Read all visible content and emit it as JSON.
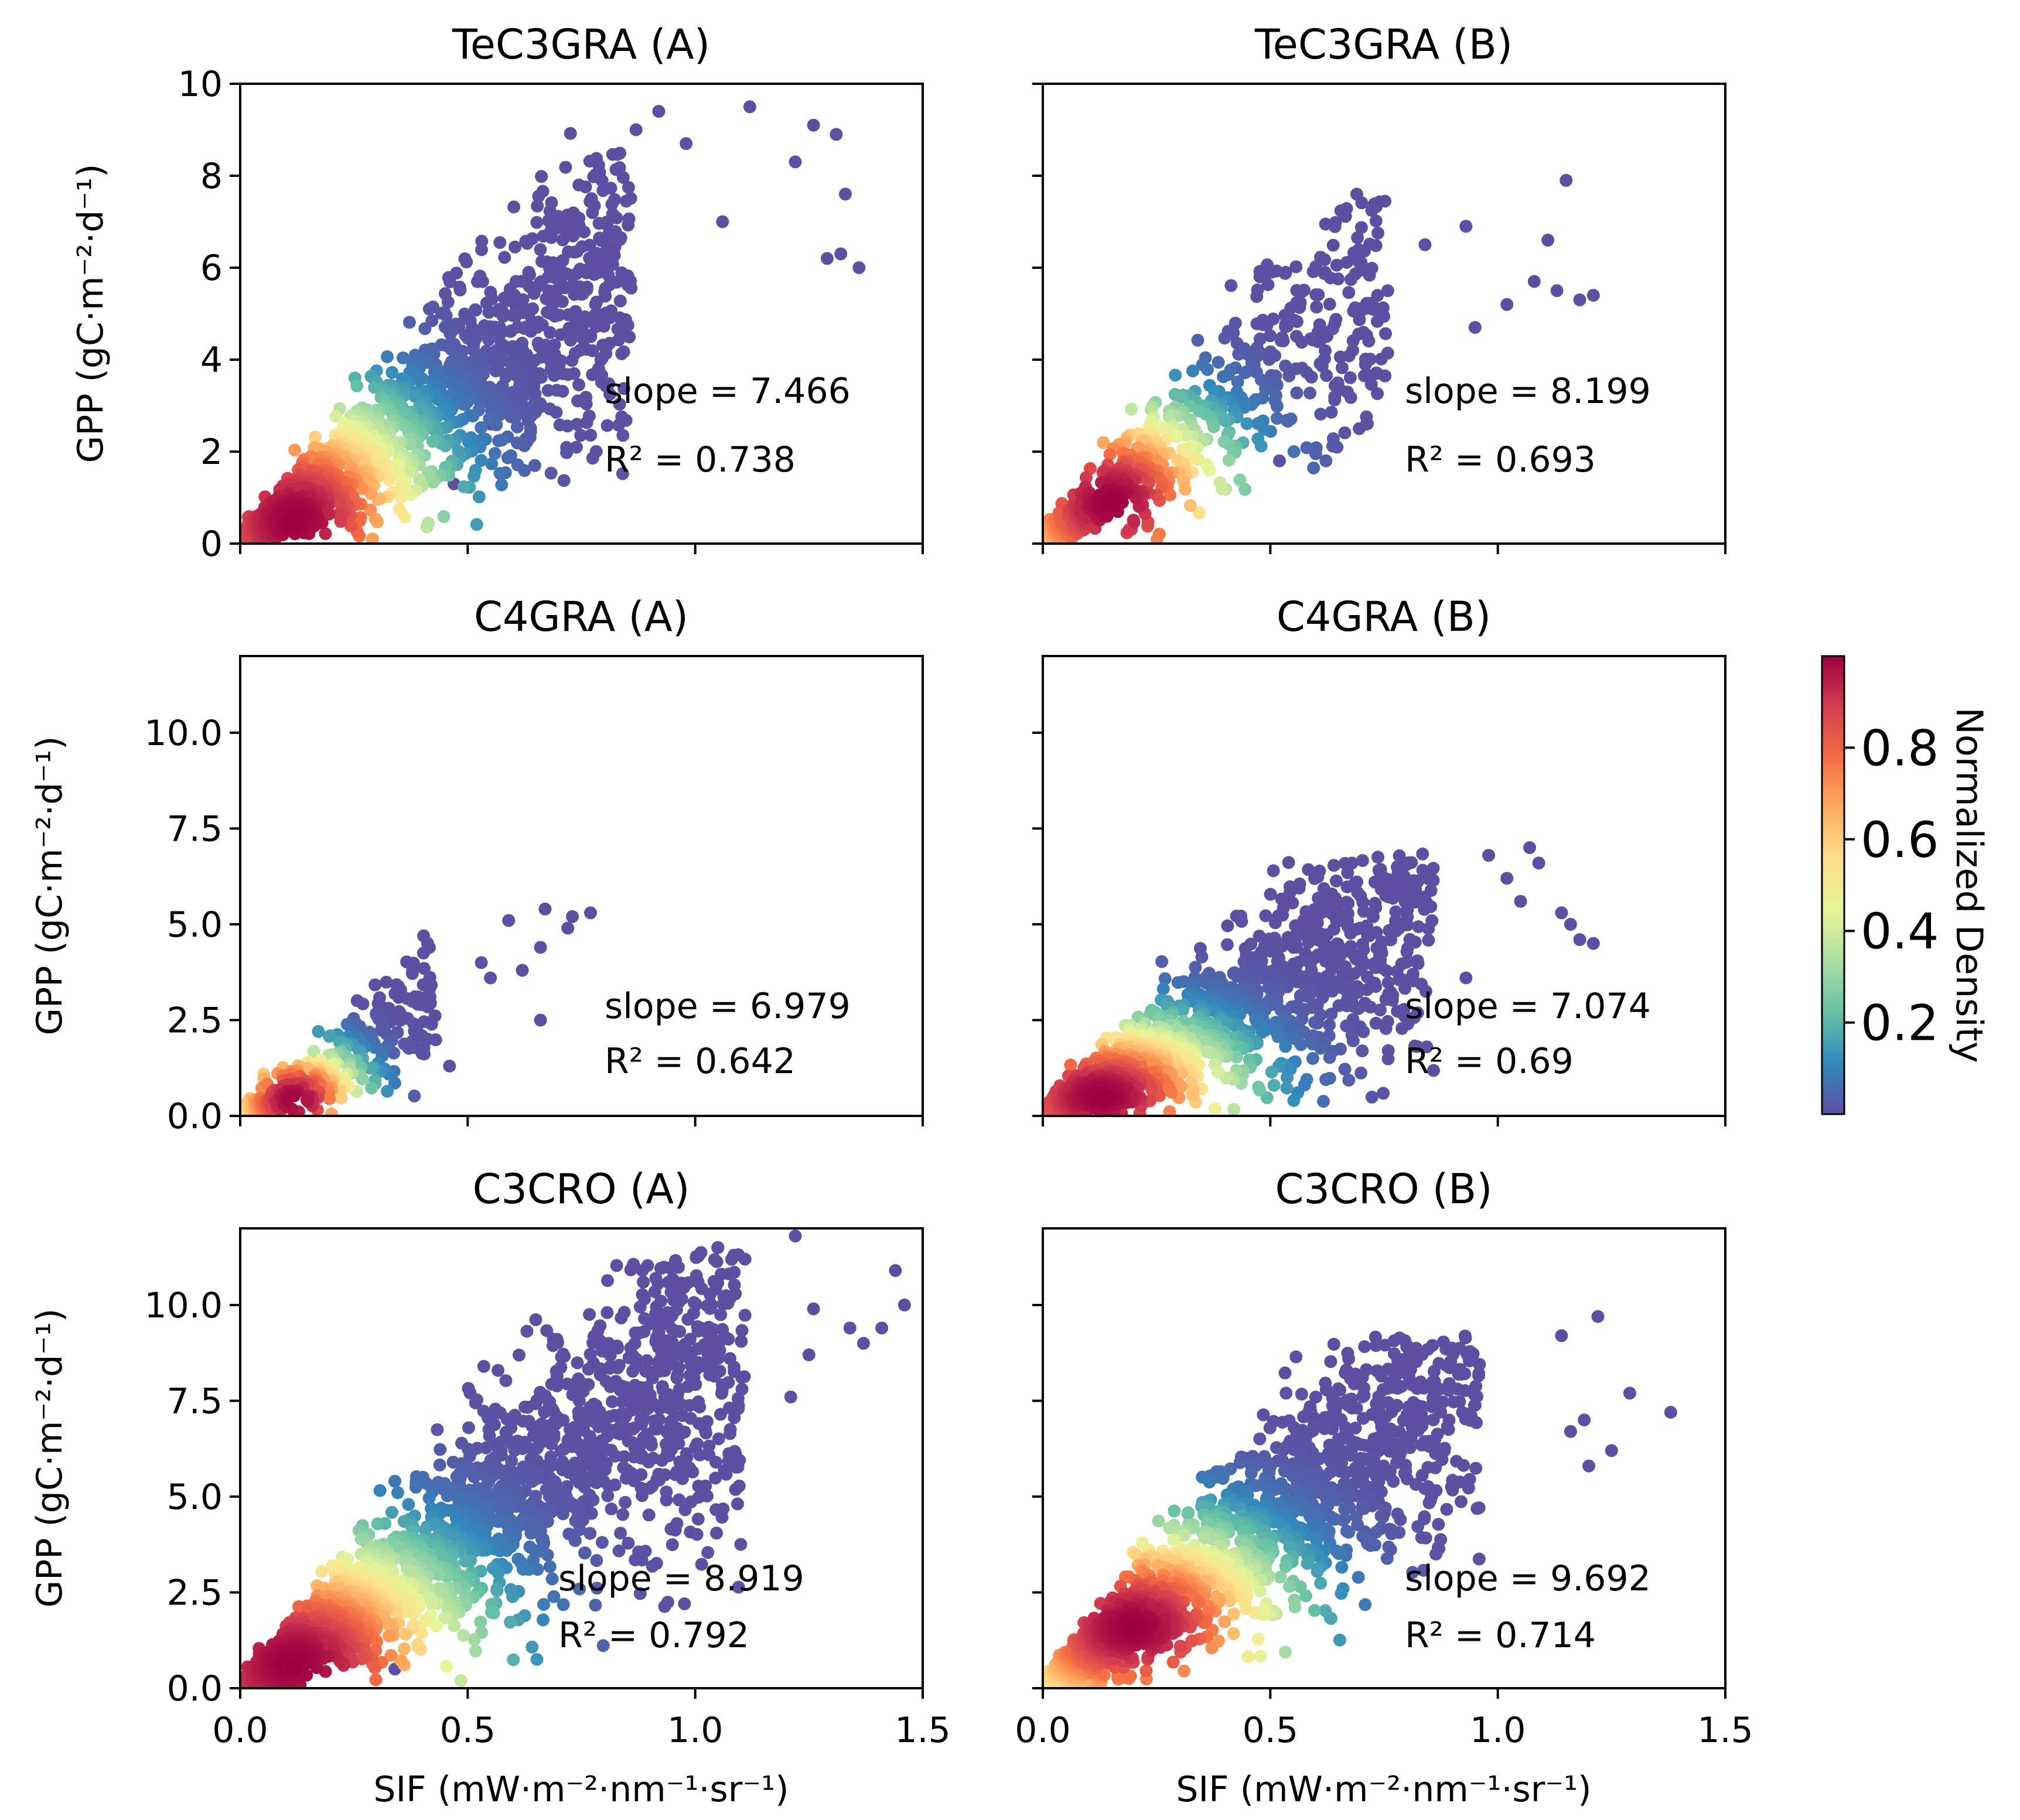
{
  "colormap": {
    "name": "Spectral_r",
    "stops": [
      "#5e4fa2",
      "#3288bd",
      "#66c2a5",
      "#abdda4",
      "#e6f598",
      "#fee08b",
      "#fdae61",
      "#f46d43",
      "#d53e4f",
      "#9e0142"
    ]
  },
  "colorbar": {
    "label": "Normalized Density",
    "ticks": [
      {
        "value": 0.2,
        "label": "0.2"
      },
      {
        "value": 0.4,
        "label": "0.4"
      },
      {
        "value": 0.6,
        "label": "0.6"
      },
      {
        "value": 0.8,
        "label": "0.8"
      }
    ]
  },
  "chart_data": [
    {
      "type": "scatter",
      "title": "TeC3GRA (A)",
      "xlim": [
        0,
        1.5
      ],
      "ylim": [
        0,
        10
      ],
      "xticks": [
        0,
        0.5,
        1.0,
        1.5
      ],
      "xtick_labels": [],
      "yticks": [
        0,
        2,
        4,
        6,
        8,
        10
      ],
      "ytick_labels": [
        "0",
        "2",
        "4",
        "6",
        "8",
        "10"
      ],
      "xlabel": "",
      "ylabel": "GPP (gC·m⁻²·d⁻¹)",
      "slope_label": "slope = 7.466",
      "r2_label": "R² = 0.738",
      "slope": 7.466,
      "r2": 0.738,
      "cloud": {
        "n": 1500,
        "xmax": 0.85,
        "spread": 2.3,
        "cap": 9.2,
        "hot": [
          0.12,
          0.5
        ]
      },
      "outliers": [
        [
          0.92,
          9.4
        ],
        [
          1.12,
          9.5
        ],
        [
          1.26,
          9.1
        ],
        [
          1.31,
          8.9
        ],
        [
          1.22,
          8.3
        ],
        [
          1.33,
          7.6
        ],
        [
          1.32,
          6.3
        ],
        [
          1.36,
          6.0
        ],
        [
          1.29,
          6.2
        ],
        [
          0.55,
          2.6
        ],
        [
          0.47,
          1.3
        ],
        [
          1.06,
          7.0
        ],
        [
          0.98,
          8.7
        ],
        [
          0.87,
          9.0
        ]
      ]
    },
    {
      "type": "scatter",
      "title": "TeC3GRA (B)",
      "xlim": [
        0,
        1.5
      ],
      "ylim": [
        0,
        10
      ],
      "xticks": [
        0,
        0.5,
        1.0,
        1.5
      ],
      "xtick_labels": [],
      "yticks": [
        0,
        2,
        4,
        6,
        8,
        10
      ],
      "ytick_labels": [],
      "xlabel": "",
      "ylabel": "",
      "slope_label": "slope = 8.199",
      "r2_label": "R² = 0.693",
      "slope": 8.199,
      "r2": 0.693,
      "cloud": {
        "n": 650,
        "xmax": 0.75,
        "spread": 2.4,
        "cap": 7.5,
        "hot": [
          0.15,
          0.9
        ]
      },
      "outliers": [
        [
          1.15,
          7.9
        ],
        [
          1.11,
          6.6
        ],
        [
          1.13,
          5.5
        ],
        [
          1.18,
          5.3
        ],
        [
          1.21,
          5.4
        ],
        [
          1.08,
          5.7
        ],
        [
          0.93,
          6.9
        ],
        [
          0.69,
          7.6
        ],
        [
          0.84,
          6.5
        ],
        [
          0.95,
          4.7
        ],
        [
          0.52,
          1.8
        ],
        [
          1.02,
          5.2
        ]
      ]
    },
    {
      "type": "scatter",
      "title": "C4GRA (A)",
      "xlim": [
        0,
        1.5
      ],
      "ylim": [
        0,
        12
      ],
      "xticks": [
        0,
        0.5,
        1.0,
        1.5
      ],
      "xtick_labels": [],
      "yticks": [
        0,
        2.5,
        5,
        7.5,
        10
      ],
      "ytick_labels": [
        "0.0",
        "2.5",
        "5.0",
        "7.5",
        "10.0"
      ],
      "xlabel": "",
      "ylabel": "GPP (gC·m⁻²·d⁻¹)",
      "slope_label": "slope = 6.979",
      "r2_label": "R² = 0.642",
      "slope": 6.979,
      "r2": 0.642,
      "cloud": {
        "n": 360,
        "xmax": 0.42,
        "spread": 2.0,
        "cap": 4.8,
        "hot": [
          0.12,
          0.4
        ]
      },
      "outliers": [
        [
          0.59,
          5.1
        ],
        [
          0.67,
          5.4
        ],
        [
          0.73,
          5.2
        ],
        [
          0.77,
          5.3
        ],
        [
          0.66,
          4.4
        ],
        [
          0.62,
          3.8
        ],
        [
          0.66,
          2.5
        ],
        [
          0.55,
          3.6
        ],
        [
          0.46,
          1.3
        ],
        [
          0.53,
          4.0
        ],
        [
          0.72,
          4.9
        ]
      ]
    },
    {
      "type": "scatter",
      "title": "C4GRA (B)",
      "xlim": [
        0,
        1.5
      ],
      "ylim": [
        0,
        12
      ],
      "xticks": [
        0,
        0.5,
        1.0,
        1.5
      ],
      "xtick_labels": [],
      "yticks": [
        0,
        2.5,
        5,
        7.5,
        10
      ],
      "ytick_labels": [],
      "xlabel": "",
      "ylabel": "",
      "slope_label": "slope = 7.074",
      "r2_label": "R² = 0.69",
      "slope": 7.074,
      "r2": 0.69,
      "cloud": {
        "n": 1400,
        "xmax": 0.85,
        "spread": 2.5,
        "cap": 6.9,
        "hot": [
          0.13,
          0.5
        ]
      },
      "outliers": [
        [
          1.07,
          7.0
        ],
        [
          1.02,
          6.2
        ],
        [
          1.05,
          5.6
        ],
        [
          1.14,
          5.3
        ],
        [
          1.18,
          4.6
        ],
        [
          1.21,
          4.5
        ],
        [
          1.16,
          5.0
        ],
        [
          0.98,
          6.8
        ],
        [
          0.93,
          3.6
        ],
        [
          1.09,
          6.6
        ]
      ]
    },
    {
      "type": "scatter",
      "title": "C3CRO (A)",
      "xlim": [
        0,
        1.5
      ],
      "ylim": [
        0,
        12
      ],
      "xticks": [
        0,
        0.5,
        1.0,
        1.5
      ],
      "xtick_labels": [
        "0.0",
        "0.5",
        "1.0",
        "1.5"
      ],
      "yticks": [
        0,
        2.5,
        5,
        7.5,
        10
      ],
      "ytick_labels": [
        "0.0",
        "2.5",
        "5.0",
        "7.5",
        "10.0"
      ],
      "xlabel": "SIF (mW·m⁻²·nm⁻¹·sr⁻¹)",
      "ylabel": "GPP (gC·m⁻²·d⁻¹)",
      "slope_label": "slope = 8.919",
      "r2_label": "R² = 0.792",
      "slope": 8.919,
      "r2": 0.792,
      "cloud": {
        "n": 2000,
        "xmax": 1.1,
        "spread": 2.6,
        "cap": 11.5,
        "hot": [
          0.12,
          0.6
        ]
      },
      "outliers": [
        [
          1.22,
          11.8
        ],
        [
          1.44,
          10.9
        ],
        [
          1.46,
          10.0
        ],
        [
          1.41,
          9.4
        ],
        [
          1.37,
          9.0
        ],
        [
          1.34,
          9.4
        ],
        [
          1.26,
          9.9
        ],
        [
          1.21,
          7.6
        ],
        [
          1.25,
          8.7
        ],
        [
          1.05,
          11.5
        ],
        [
          0.34,
          0.5
        ]
      ]
    },
    {
      "type": "scatter",
      "title": "C3CRO (B)",
      "xlim": [
        0,
        1.5
      ],
      "ylim": [
        0,
        12
      ],
      "xticks": [
        0,
        0.5,
        1.0,
        1.5
      ],
      "xtick_labels": [
        "0.0",
        "0.5",
        "1.0",
        "1.5"
      ],
      "yticks": [
        0,
        2.5,
        5,
        7.5,
        10
      ],
      "ytick_labels": [],
      "xlabel": "SIF (mW·m⁻²·nm⁻¹·sr⁻¹)",
      "ylabel": "",
      "slope_label": "slope = 9.692",
      "r2_label": "R² = 0.714",
      "slope": 9.692,
      "r2": 0.714,
      "cloud": {
        "n": 1800,
        "xmax": 0.95,
        "spread": 2.7,
        "cap": 9.2,
        "hot": [
          0.2,
          1.6
        ]
      },
      "outliers": [
        [
          1.38,
          7.2
        ],
        [
          1.29,
          7.7
        ],
        [
          1.25,
          6.2
        ],
        [
          1.22,
          9.7
        ],
        [
          1.16,
          6.7
        ],
        [
          1.14,
          9.2
        ],
        [
          1.19,
          7.0
        ],
        [
          1.2,
          5.8
        ]
      ]
    }
  ]
}
